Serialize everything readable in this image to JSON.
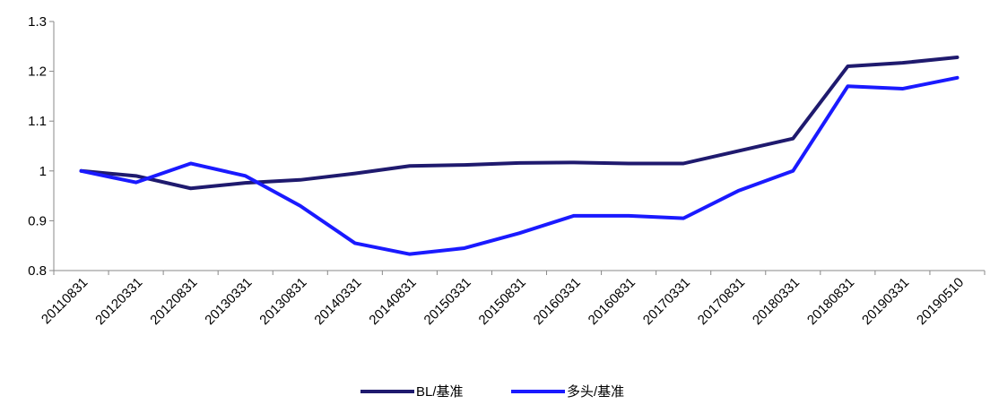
{
  "chart_data": {
    "type": "line",
    "categories": [
      "20110831",
      "20120331",
      "20120831",
      "20130331",
      "20130831",
      "20140331",
      "20140831",
      "20150331",
      "20150831",
      "20160331",
      "20160831",
      "20170331",
      "20170831",
      "20180331",
      "20180831",
      "20190331",
      "20190510"
    ],
    "series": [
      {
        "name": "BL/基准",
        "color": "#1f1a6e",
        "values": [
          1.0,
          0.99,
          0.965,
          0.976,
          0.982,
          0.995,
          1.01,
          1.012,
          1.016,
          1.017,
          1.015,
          1.015,
          1.04,
          1.065,
          1.21,
          1.217,
          1.228
        ]
      },
      {
        "name": "多头/基准",
        "color": "#1a1aff",
        "values": [
          1.0,
          0.977,
          1.015,
          0.99,
          0.93,
          0.855,
          0.833,
          0.845,
          0.875,
          0.91,
          0.91,
          0.905,
          0.96,
          1.0,
          1.17,
          1.165,
          1.187
        ]
      }
    ],
    "ylim": [
      0.8,
      1.3
    ],
    "yticks": [
      0.8,
      0.9,
      1,
      1.1,
      1.2,
      1.3
    ],
    "grid": false,
    "legend": "bottom"
  }
}
